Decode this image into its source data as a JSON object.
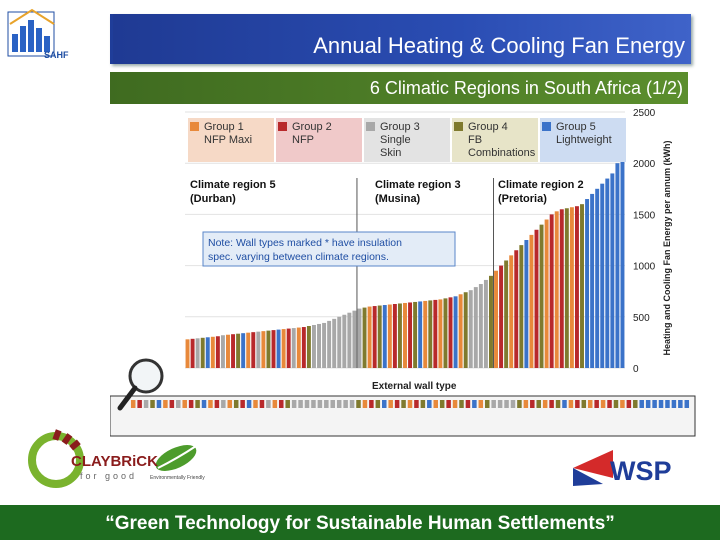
{
  "header": {
    "logo_label": "SAHF",
    "title": "Annual Heating & Cooling Fan Energy",
    "subtitle": "6 Climatic Regions in South Africa (1/2)"
  },
  "legend": [
    {
      "label": "Group 1\nNFP Maxi",
      "color": "#e8893b",
      "bg": "#f6d9c6"
    },
    {
      "label": "Group 2\nNFP",
      "color": "#b8292b",
      "bg": "#f0c9c9"
    },
    {
      "label": "Group 3\nSingle\nSkin",
      "color": "#a8a8a8",
      "bg": "#e3e3e3"
    },
    {
      "label": "Group 4\nFB\nCombinations",
      "color": "#7f7a2e",
      "bg": "#e7e4c8"
    },
    {
      "label": "Group 5\nLightweight",
      "color": "#3b73c9",
      "bg": "#cddcf2"
    }
  ],
  "chart_data": {
    "type": "bar",
    "ylabel": "Heating and Cooling Fan Energy per annum (kWh)",
    "xlabel": "External wall type",
    "ylim": [
      0,
      2500
    ],
    "yticks": [
      0,
      500,
      1000,
      1500,
      2000,
      2500
    ],
    "regions": [
      {
        "label": "Climate region 5\n(Durban)"
      },
      {
        "label": "Climate region 3\n(Musina)"
      },
      {
        "label": "Climate region 2\n(Pretoria)"
      }
    ],
    "note": "Note: Wall types marked * have insulation\nspec. varying between climate regions.",
    "values": [
      280,
      285,
      290,
      295,
      300,
      305,
      310,
      320,
      325,
      330,
      335,
      340,
      345,
      350,
      355,
      360,
      365,
      370,
      375,
      380,
      385,
      390,
      395,
      400,
      410,
      420,
      430,
      440,
      460,
      480,
      500,
      520,
      540,
      560,
      580,
      590,
      600,
      605,
      610,
      615,
      620,
      625,
      630,
      635,
      640,
      645,
      650,
      655,
      660,
      665,
      670,
      680,
      690,
      700,
      720,
      740,
      760,
      790,
      820,
      860,
      900,
      950,
      1000,
      1050,
      1100,
      1150,
      1200,
      1250,
      1300,
      1350,
      1400,
      1450,
      1500,
      1530,
      1550,
      1560,
      1570,
      1580,
      1600,
      1650,
      1700,
      1750,
      1800,
      1850,
      1900,
      2000,
      2100
    ],
    "groups": [
      1,
      2,
      3,
      4,
      5,
      1,
      2,
      3,
      1,
      2,
      4,
      5,
      1,
      2,
      3,
      1,
      4,
      2,
      5,
      1,
      2,
      3,
      1,
      2,
      4,
      3,
      3,
      3,
      3,
      3,
      3,
      3,
      3,
      3,
      3,
      4,
      1,
      2,
      4,
      5,
      1,
      2,
      4,
      1,
      2,
      4,
      5,
      1,
      4,
      2,
      1,
      4,
      2,
      5,
      1,
      4,
      3,
      3,
      3,
      3,
      4,
      1,
      2,
      4,
      1,
      2,
      4,
      5,
      1,
      2,
      4,
      1,
      2,
      1,
      2,
      4,
      1,
      2,
      4,
      5,
      5,
      5,
      5,
      5,
      5,
      5,
      5
    ],
    "grid": true
  },
  "logos": {
    "claybrick": "CLAYBRiCK",
    "claybrick_sub": "for good",
    "env": "Environmentally Friendly",
    "wsp": "WSP"
  },
  "footer": {
    "text": "“Green Technology for Sustainable Human Settlements”"
  },
  "colors": {
    "title_bar": "#1f3a93",
    "subtitle_bar": "#4e7d27",
    "footer_bar": "#1d6a1f"
  }
}
